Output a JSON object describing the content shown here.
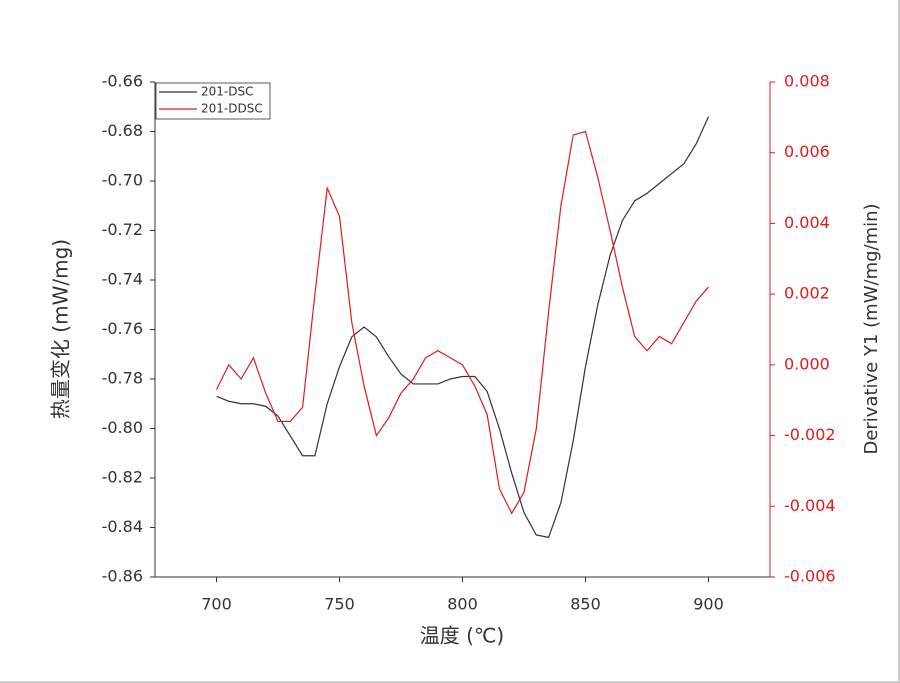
{
  "chart_data": {
    "type": "line",
    "x_label": "温度 (℃)",
    "y_label": "热量变化 (mW/mg)",
    "y2_label": "Derivative Y1 (mW/mg/min)",
    "x": [
      700,
      705,
      710,
      715,
      720,
      725,
      730,
      735,
      740,
      745,
      750,
      755,
      760,
      765,
      770,
      775,
      780,
      785,
      790,
      795,
      800,
      805,
      810,
      815,
      820,
      825,
      830,
      835,
      840,
      845,
      850,
      855,
      860,
      865,
      870,
      875,
      880,
      885,
      890,
      895,
      900
    ],
    "series": [
      {
        "name": "201-DSC",
        "color": "#333333",
        "axis": "y",
        "values": [
          -0.787,
          -0.789,
          -0.79,
          -0.79,
          -0.791,
          -0.795,
          -0.803,
          -0.811,
          -0.811,
          -0.79,
          -0.775,
          -0.763,
          -0.759,
          -0.763,
          -0.771,
          -0.778,
          -0.782,
          -0.782,
          -0.782,
          -0.78,
          -0.779,
          -0.779,
          -0.785,
          -0.8,
          -0.818,
          -0.834,
          -0.843,
          -0.844,
          -0.83,
          -0.805,
          -0.775,
          -0.75,
          -0.73,
          -0.716,
          -0.708,
          -0.705,
          -0.701,
          -0.697,
          -0.693,
          -0.685,
          -0.674
        ]
      },
      {
        "name": "201-DDSC",
        "color": "#e31a1c",
        "axis": "y2",
        "values": [
          -0.0007,
          0.0,
          -0.0004,
          0.0002,
          -0.0008,
          -0.0016,
          -0.0016,
          -0.0012,
          0.002,
          0.005,
          0.0042,
          0.0012,
          -0.0006,
          -0.002,
          -0.0015,
          -0.0008,
          -0.0004,
          0.0002,
          0.0004,
          0.0002,
          0.0,
          -0.0006,
          -0.0014,
          -0.0035,
          -0.0042,
          -0.0036,
          -0.0018,
          0.0015,
          0.0045,
          0.0065,
          0.0066,
          0.0053,
          0.0038,
          0.0022,
          0.0008,
          0.0004,
          0.0008,
          0.0006,
          0.0012,
          0.0018,
          0.0022
        ]
      }
    ],
    "xlim": [
      675,
      925
    ],
    "xticks": [
      700,
      750,
      800,
      850,
      900
    ],
    "ylim": [
      -0.86,
      -0.66
    ],
    "yticks": [
      {
        "value": -0.86,
        "label": "-0.86"
      },
      {
        "value": -0.84,
        "label": "-0.84"
      },
      {
        "value": -0.82,
        "label": "-0.82"
      },
      {
        "value": -0.8,
        "label": "-0.80"
      },
      {
        "value": -0.78,
        "label": "-0.78"
      },
      {
        "value": -0.76,
        "label": "-0.76"
      },
      {
        "value": -0.74,
        "label": "-0.74"
      },
      {
        "value": -0.72,
        "label": "-0.72"
      },
      {
        "value": -0.7,
        "label": "-0.70"
      },
      {
        "value": -0.68,
        "label": "-0.68"
      },
      {
        "value": -0.66,
        "label": "-0.66"
      }
    ],
    "y2lim": [
      -0.006,
      0.008
    ],
    "y2ticks": [
      {
        "value": -0.006,
        "label": "-0.006"
      },
      {
        "value": -0.004,
        "label": "-0.004"
      },
      {
        "value": -0.002,
        "label": "-0.002"
      },
      {
        "value": 0,
        "label": "0.000"
      },
      {
        "value": 0.002,
        "label": "0.002"
      },
      {
        "value": 0.004,
        "label": "0.004"
      },
      {
        "value": 0.006,
        "label": "0.006"
      },
      {
        "value": 0.008,
        "label": "0.008"
      }
    ],
    "y2color": "#e31a1c",
    "legend": "upper left"
  }
}
